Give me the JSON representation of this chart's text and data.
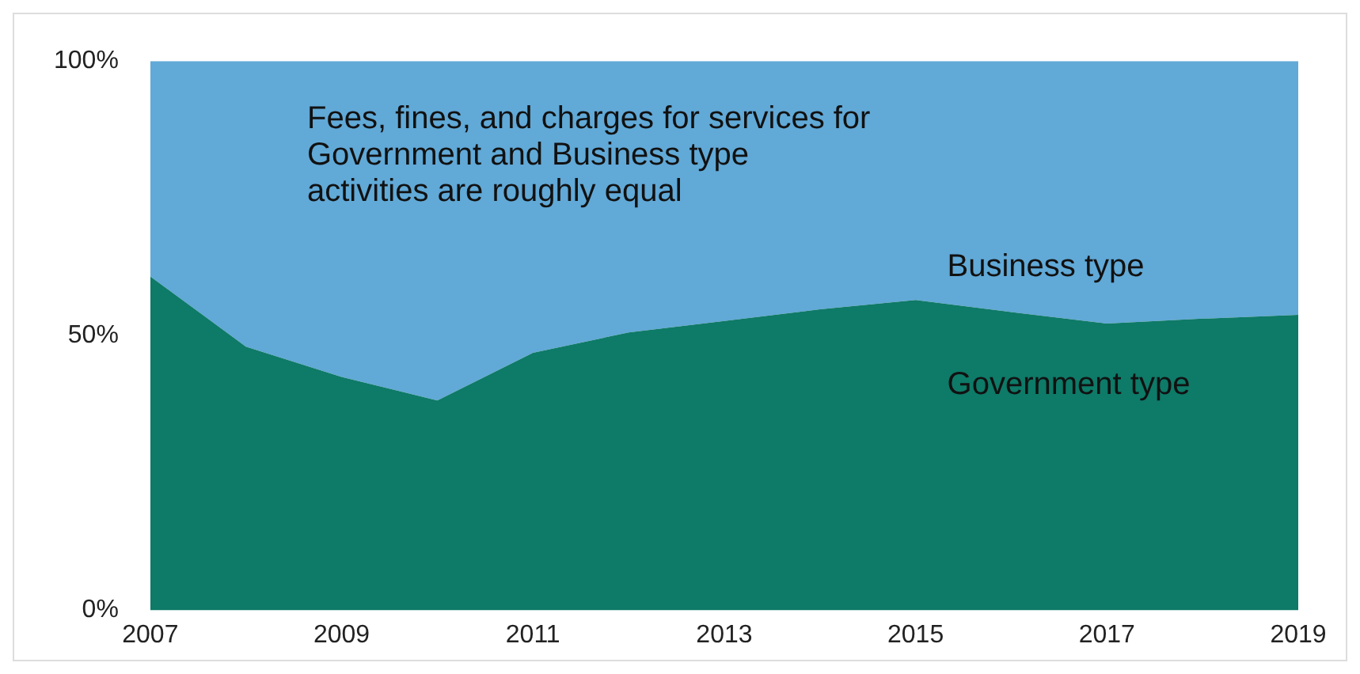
{
  "chart_data": {
    "type": "area",
    "stacked": true,
    "categories": [
      "2007",
      null,
      "2009",
      null,
      "2011",
      null,
      "2013",
      null,
      "2015",
      null,
      "2017",
      null,
      "2019"
    ],
    "series": [
      {
        "name": "Government type",
        "color": "#0e7a68",
        "values": [
          60.8,
          48,
          42.5,
          38.2,
          46.9,
          50.6,
          52.7,
          54.8,
          56.5,
          54.3,
          52.2,
          53.1,
          53.8
        ]
      },
      {
        "name": "Business type",
        "color": "#61a9d7",
        "values": [
          39.2,
          52,
          57.5,
          61.8,
          53.1,
          49.4,
          47.3,
          45.2,
          43.5,
          45.7,
          47.8,
          46.9,
          46.2
        ]
      }
    ],
    "ylim": [
      0,
      100
    ],
    "yticks": [
      {
        "value": 0,
        "label": "0%"
      },
      {
        "value": 50,
        "label": "50%"
      },
      {
        "value": 100,
        "label": "100%"
      }
    ],
    "grid": false,
    "legend": false,
    "annotations": [
      "Fees, fines, and charges for services for Government and Business type activities are roughly equal"
    ]
  }
}
